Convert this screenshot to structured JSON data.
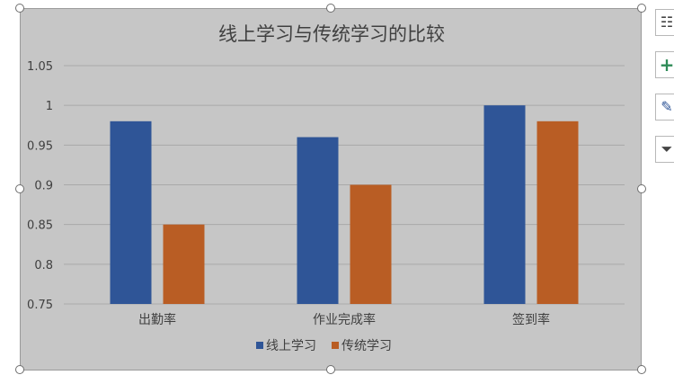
{
  "chart_data": {
    "type": "bar",
    "title": "线上学习与传统学习的比较",
    "categories": [
      "出勤率",
      "作业完成率",
      "签到率"
    ],
    "series": [
      {
        "name": "线上学习",
        "color": "#2f5597",
        "values": [
          0.98,
          0.96,
          1.0
        ]
      },
      {
        "name": "传统学习",
        "color": "#b95d24",
        "values": [
          0.85,
          0.9,
          0.98
        ]
      }
    ],
    "ylim": [
      0.75,
      1.05
    ],
    "yticks": [
      "0.75",
      "0.8",
      "0.85",
      "0.9",
      "0.95",
      "1",
      "1.05"
    ],
    "ytick_values": [
      0.75,
      0.8,
      0.85,
      0.9,
      0.95,
      1.0,
      1.05
    ],
    "grid": true,
    "legend_position": "bottom"
  },
  "colors": {
    "plot_background": "#c6c6c6",
    "gridline": "#a9a9a9",
    "text": "#404040"
  },
  "side_toolbar": [
    {
      "icon": "chart-layout-icon",
      "glyph": "☷"
    },
    {
      "icon": "plus-icon",
      "glyph": "+"
    },
    {
      "icon": "brush-icon",
      "glyph": "✎"
    },
    {
      "icon": "filter-icon",
      "glyph": "⏷"
    }
  ]
}
